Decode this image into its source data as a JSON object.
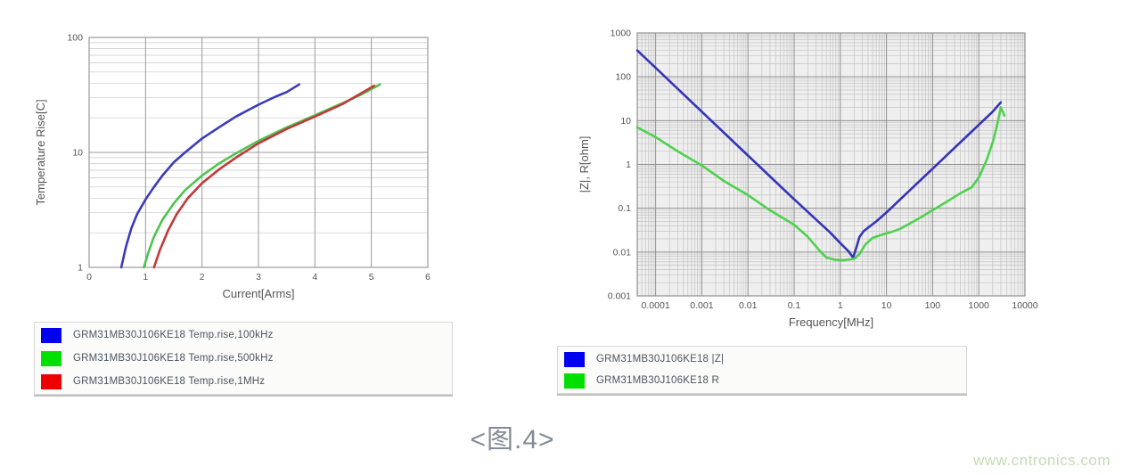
{
  "caption": "<图.4>",
  "watermark": "www.cntronics.com",
  "legends": {
    "left": {
      "items": [
        {
          "label": "GRM31MB30J106KE18 Temp.rise,100kHz",
          "color": "#0000ee"
        },
        {
          "label": "GRM31MB30J106KE18 Temp.rise,500kHz",
          "color": "#00e000"
        },
        {
          "label": "GRM31MB30J106KE18 Temp.rise,1MHz",
          "color": "#ee0000"
        }
      ]
    },
    "right": {
      "items": [
        {
          "label": "GRM31MB30J106KE18 |Z|",
          "color": "#0000ee"
        },
        {
          "label": "GRM31MB30J106KE18 R",
          "color": "#00e000"
        }
      ]
    }
  },
  "chart_data": [
    {
      "type": "line",
      "title": "",
      "xlabel": "Current[Arms]",
      "ylabel": "Temperature Rise[C]",
      "plot_bg": "#ffffff",
      "grid_minor_color": "#c9c9c9",
      "grid_major_color": "#9a9a9a",
      "x_axis": {
        "type": "linear",
        "min": 0,
        "max": 6,
        "minor_grid": false,
        "ticks": [
          {
            "v": 0,
            "label": "0"
          },
          {
            "v": 1,
            "label": "1"
          },
          {
            "v": 2,
            "label": "2"
          },
          {
            "v": 3,
            "label": "3"
          },
          {
            "v": 4,
            "label": "4"
          },
          {
            "v": 5,
            "label": "5"
          },
          {
            "v": 6,
            "label": "6"
          }
        ]
      },
      "y_axis": {
        "type": "log",
        "min": 1,
        "max": 100,
        "minor_grid": true,
        "ticks": [
          {
            "v": 1,
            "label": "1"
          },
          {
            "v": 10,
            "label": "10"
          },
          {
            "v": 100,
            "label": "100"
          }
        ]
      },
      "series": [
        {
          "name": "GRM31MB30J106KE18 Temp.rise,100kHz",
          "color": "#3b3bb8",
          "points": [
            [
              0.57,
              1
            ],
            [
              0.65,
              1.5
            ],
            [
              0.75,
              2.2
            ],
            [
              0.85,
              2.9
            ],
            [
              1.0,
              3.9
            ],
            [
              1.15,
              5.0
            ],
            [
              1.3,
              6.3
            ],
            [
              1.5,
              8.2
            ],
            [
              1.7,
              10.0
            ],
            [
              2.0,
              13.2
            ],
            [
              2.3,
              16.5
            ],
            [
              2.6,
              20.5
            ],
            [
              3.0,
              26.0
            ],
            [
              3.3,
              30.5
            ],
            [
              3.5,
              33.5
            ],
            [
              3.72,
              39.0
            ]
          ]
        },
        {
          "name": "GRM31MB30J106KE18 Temp.rise,500kHz",
          "color": "#4ec44e",
          "points": [
            [
              0.97,
              1
            ],
            [
              1.05,
              1.35
            ],
            [
              1.15,
              1.85
            ],
            [
              1.3,
              2.6
            ],
            [
              1.5,
              3.6
            ],
            [
              1.7,
              4.7
            ],
            [
              2.0,
              6.3
            ],
            [
              2.3,
              8.0
            ],
            [
              2.6,
              9.8
            ],
            [
              3.0,
              12.6
            ],
            [
              3.5,
              16.5
            ],
            [
              4.0,
              21.0
            ],
            [
              4.5,
              27.0
            ],
            [
              4.8,
              31.5
            ],
            [
              5.15,
              39.0
            ]
          ]
        },
        {
          "name": "GRM31MB30J106KE18 Temp.rise,1MHz",
          "color": "#c03a3a",
          "points": [
            [
              1.15,
              1
            ],
            [
              1.25,
              1.4
            ],
            [
              1.4,
              2.1
            ],
            [
              1.55,
              2.9
            ],
            [
              1.75,
              4.0
            ],
            [
              2.0,
              5.4
            ],
            [
              2.3,
              7.1
            ],
            [
              2.6,
              9.0
            ],
            [
              3.0,
              12.0
            ],
            [
              3.5,
              16.0
            ],
            [
              4.0,
              20.5
            ],
            [
              4.5,
              26.5
            ],
            [
              5.05,
              38.0
            ]
          ]
        }
      ]
    },
    {
      "type": "line",
      "title": "",
      "xlabel": "Frequency[MHz]",
      "ylabel": "|Z|, R[ohm]",
      "plot_bg": "#efefef",
      "grid_minor_color": "#c4c4c4",
      "grid_major_color": "#8f8f8f",
      "x_axis": {
        "type": "log",
        "min": 4e-05,
        "max": 10000,
        "minor_grid": true,
        "ticks": [
          {
            "v": 0.0001,
            "label": "0.0001"
          },
          {
            "v": 0.001,
            "label": "0.001"
          },
          {
            "v": 0.01,
            "label": "0.01"
          },
          {
            "v": 0.1,
            "label": "0.1"
          },
          {
            "v": 1,
            "label": "1"
          },
          {
            "v": 10,
            "label": "10"
          },
          {
            "v": 100,
            "label": "100"
          },
          {
            "v": 1000,
            "label": "1000"
          },
          {
            "v": 10000,
            "label": "10000"
          }
        ]
      },
      "y_axis": {
        "type": "log",
        "min": 0.001,
        "max": 1000,
        "minor_grid": true,
        "ticks": [
          {
            "v": 0.001,
            "label": "0.001"
          },
          {
            "v": 0.01,
            "label": "0.01"
          },
          {
            "v": 0.1,
            "label": "0.1"
          },
          {
            "v": 1,
            "label": "1"
          },
          {
            "v": 10,
            "label": "10"
          },
          {
            "v": 100,
            "label": "100"
          },
          {
            "v": 1000,
            "label": "1000"
          }
        ]
      },
      "series": [
        {
          "name": "GRM31MB30J106KE18 |Z|",
          "color": "#3434b8",
          "points": [
            [
              4e-05,
              400
            ],
            [
              0.0001,
              160
            ],
            [
              0.001,
              16
            ],
            [
              0.01,
              1.6
            ],
            [
              0.1,
              0.16
            ],
            [
              0.3,
              0.055
            ],
            [
              0.6,
              0.028
            ],
            [
              1.0,
              0.016
            ],
            [
              1.5,
              0.0105
            ],
            [
              1.9,
              0.0075
            ],
            [
              2.2,
              0.012
            ],
            [
              2.6,
              0.022
            ],
            [
              3.2,
              0.03
            ],
            [
              4,
              0.036
            ],
            [
              6,
              0.05
            ],
            [
              10,
              0.08
            ],
            [
              20,
              0.16
            ],
            [
              50,
              0.4
            ],
            [
              100,
              0.8
            ],
            [
              300,
              2.4
            ],
            [
              600,
              4.8
            ],
            [
              1000,
              8
            ],
            [
              2000,
              16
            ],
            [
              3000,
              26
            ]
          ]
        },
        {
          "name": "GRM31MB30J106KE18 R",
          "color": "#4ed14e",
          "points": [
            [
              4e-05,
              7
            ],
            [
              0.0001,
              4.2
            ],
            [
              0.0003,
              2.0
            ],
            [
              0.001,
              0.95
            ],
            [
              0.003,
              0.42
            ],
            [
              0.01,
              0.2
            ],
            [
              0.03,
              0.09
            ],
            [
              0.1,
              0.042
            ],
            [
              0.2,
              0.022
            ],
            [
              0.35,
              0.011
            ],
            [
              0.5,
              0.0075
            ],
            [
              0.8,
              0.0066
            ],
            [
              1.2,
              0.0065
            ],
            [
              2.0,
              0.007
            ],
            [
              2.6,
              0.009
            ],
            [
              3.5,
              0.015
            ],
            [
              5,
              0.021
            ],
            [
              8,
              0.025
            ],
            [
              12,
              0.028
            ],
            [
              20,
              0.034
            ],
            [
              50,
              0.058
            ],
            [
              100,
              0.09
            ],
            [
              200,
              0.14
            ],
            [
              400,
              0.22
            ],
            [
              700,
              0.3
            ],
            [
              1000,
              0.5
            ],
            [
              1500,
              1.3
            ],
            [
              2000,
              3.2
            ],
            [
              2500,
              8
            ],
            [
              3000,
              20
            ],
            [
              3600,
              13
            ]
          ]
        }
      ]
    }
  ]
}
